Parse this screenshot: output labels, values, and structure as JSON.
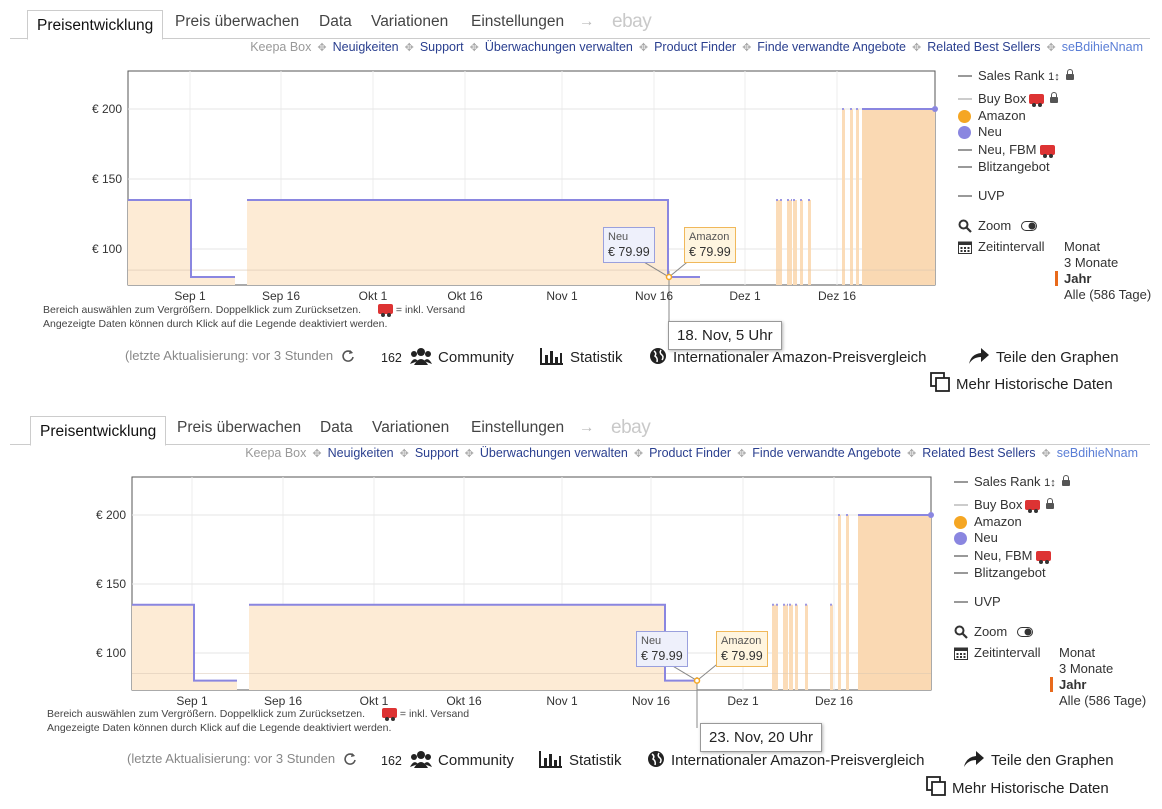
{
  "tabs": [
    "Preisentwicklung",
    "Preis überwachen",
    "Data",
    "Variationen",
    "Einstellungen"
  ],
  "tab_arrow": "→",
  "tab_ebay": "ebay",
  "links": {
    "keepa_box": "Keepa Box",
    "items": [
      "Neuigkeiten",
      "Support",
      "Überwachungen verwalten",
      "Product Finder",
      "Finde verwandte Angebote",
      "Related Best Sellers"
    ],
    "user": "seBdihieNnam",
    "separator": "✥"
  },
  "legend": {
    "sales_rank": "Sales Rank",
    "sales_rank_icon": "1↕",
    "buy_box": "Buy Box",
    "amazon": "Amazon",
    "neu": "Neu",
    "neu_fbm": "Neu, FBM",
    "blitz": "Blitzangebot",
    "uvp": "UVP",
    "zoom": "Zoom",
    "zeitintervall": "Zeitintervall",
    "intervals": [
      "Monat",
      "3 Monate",
      "Jahr",
      "Alle (586 Tage)"
    ],
    "selected_interval": "Jahr"
  },
  "colors": {
    "amazon": "#f5a623",
    "neu": "#8a86e0",
    "fill": "#fdebd5",
    "link": "#2a3f8f",
    "accent": "#e86a1c"
  },
  "notes": {
    "line1": "Bereich auswählen zum Vergrößern. Doppelklick zum Zurücksetzen.",
    "line1b": "= inkl. Versand",
    "line2": "Angezeigte Daten können durch Klick auf die Legende deaktiviert werden."
  },
  "footer": {
    "update": "(letzte Aktualisierung: vor 3 Stunden",
    "count": "162",
    "community": "Community",
    "statistik": "Statistik",
    "intl": "Internationaler Amazon-Preisvergleich",
    "share": "Teile den Graphen",
    "more": "Mehr Historische Daten"
  },
  "panels": [
    {
      "tooltip_time": "18. Nov, 5 Uhr",
      "neu_label": "Neu",
      "neu_price": "€ 79.99",
      "amazon_label": "Amazon",
      "amazon_price": "€ 79.99"
    },
    {
      "tooltip_time": "23. Nov, 20 Uhr",
      "neu_label": "Neu",
      "neu_price": "€ 79.99",
      "amazon_label": "Amazon",
      "amazon_price": "€ 79.99"
    }
  ],
  "chart_data": {
    "type": "line",
    "y_ticks": [
      "€ 100",
      "€ 150",
      "€ 200"
    ],
    "x_ticks": [
      "Sep 1",
      "Sep 16",
      "Okt 1",
      "Okt 16",
      "Nov 1",
      "Nov 16",
      "Dez 1",
      "Dez 16"
    ],
    "series": [
      {
        "name": "Neu",
        "values": [
          135,
          79.99,
          135,
          135,
          79.99,
          200
        ]
      },
      {
        "name": "Amazon",
        "values": [
          79.99
        ]
      }
    ]
  }
}
